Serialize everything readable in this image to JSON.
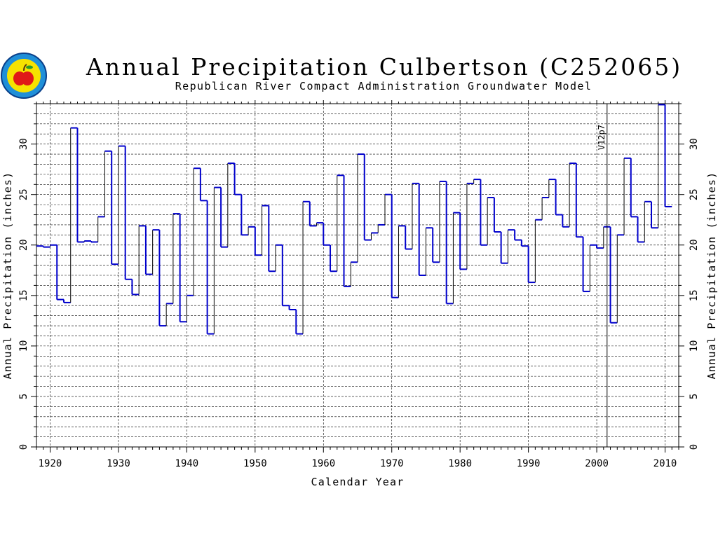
{
  "chart_data": {
    "type": "line",
    "step": true,
    "title": "Annual Precipitation Culbertson (C252065)",
    "subtitle": "Republican River Compact Administration Groundwater Model",
    "xlabel": "Calendar Year",
    "ylabel": "Annual Precipitation (inches)",
    "xlim": [
      1918,
      2012
    ],
    "ylim": [
      0,
      34
    ],
    "x_ticks": [
      1920,
      1930,
      1940,
      1950,
      1960,
      1970,
      1980,
      1990,
      2000,
      2010
    ],
    "y_ticks": [
      0,
      5,
      10,
      15,
      20,
      25,
      30
    ],
    "grid": true,
    "line_color": "#0000cc",
    "annotations": [
      {
        "x": 2001,
        "text": "V12p7"
      }
    ],
    "series": [
      {
        "x": [
          1918,
          1919,
          1920,
          1921,
          1922,
          1923,
          1924,
          1925,
          1926,
          1927,
          1928,
          1929,
          1930,
          1931,
          1932,
          1933,
          1934,
          1935,
          1936,
          1937,
          1938,
          1939,
          1940,
          1941,
          1942,
          1943,
          1944,
          1945,
          1946,
          1947,
          1948,
          1949,
          1950,
          1951,
          1952,
          1953,
          1954,
          1955,
          1956,
          1957,
          1958,
          1959,
          1960,
          1961,
          1962,
          1963,
          1964,
          1965,
          1966,
          1967,
          1968,
          1969,
          1970,
          1971,
          1972,
          1973,
          1974,
          1975,
          1976,
          1977,
          1978,
          1979,
          1980,
          1981,
          1982,
          1983,
          1984,
          1985,
          1986,
          1987,
          1988,
          1989,
          1990,
          1991,
          1992,
          1993,
          1994,
          1995,
          1996,
          1997,
          1998,
          1999,
          2000,
          2001,
          2002,
          2003,
          2004,
          2005,
          2006,
          2007,
          2008,
          2009,
          2010
        ],
        "values": [
          19.9,
          19.8,
          20.0,
          14.6,
          14.3,
          31.6,
          20.3,
          20.4,
          20.3,
          22.8,
          29.3,
          18.1,
          29.8,
          16.6,
          15.1,
          21.9,
          17.1,
          21.5,
          12.0,
          14.2,
          23.1,
          12.4,
          15.0,
          27.6,
          24.4,
          11.2,
          25.7,
          19.8,
          28.1,
          25.0,
          21.0,
          21.8,
          19.0,
          23.9,
          17.4,
          20.0,
          14.0,
          13.6,
          11.2,
          24.3,
          21.9,
          22.2,
          20.0,
          17.4,
          26.9,
          15.9,
          18.3,
          29.0,
          20.5,
          21.2,
          22.0,
          25.0,
          14.8,
          21.9,
          19.6,
          26.1,
          17.0,
          21.7,
          18.3,
          26.3,
          14.2,
          23.2,
          17.6,
          26.1,
          26.5,
          20.0,
          24.7,
          21.3,
          18.2,
          21.5,
          20.5,
          19.9,
          16.3,
          22.5,
          24.7,
          26.5,
          23.0,
          21.8,
          28.1,
          20.8,
          15.4,
          20.0,
          19.7,
          21.8,
          12.3,
          21.0,
          28.6,
          22.8,
          20.3,
          24.3,
          21.7,
          33.9,
          23.8
        ]
      }
    ]
  }
}
